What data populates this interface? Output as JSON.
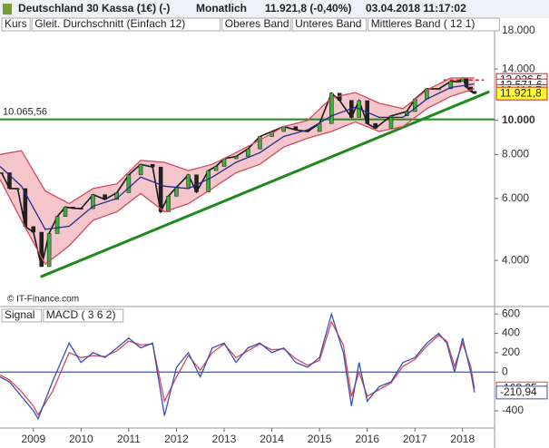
{
  "header": {
    "title": "Deutschland 30 Kassa (1€) (-)",
    "period": "Monatlich",
    "quote": "11.921,8 (-0,40%)",
    "timestamp": "03.04.2018 11:17:02",
    "copyright": "© IT-Finance.com"
  },
  "chart_data": [
    {
      "type": "line",
      "log_scale": true,
      "legend": [
        "Kurs",
        "Gleit. Durchschnitt (Einfach 12)",
        "Oberes Band",
        "Unteres Band",
        "Mittleres Band ( 12 1)"
      ],
      "xlim": [
        2008.3,
        2018.67
      ],
      "ylim": [
        3010,
        19300
      ],
      "yticks": [
        {
          "value": 4000,
          "label": "4.000"
        },
        {
          "value": 6000,
          "label": "6.000"
        },
        {
          "value": 8000,
          "label": "8.000"
        },
        {
          "value": 10000,
          "label": "10.000"
        },
        {
          "value": 14000,
          "label": "14.000"
        },
        {
          "value": 18000,
          "label": "18.000"
        }
      ],
      "series": [
        {
          "name": "Kurs",
          "color": "#1a1a1a",
          "x": [
            2008.33,
            2008.5,
            2008.67,
            2008.83,
            2009.0,
            2009.17,
            2009.33,
            2009.5,
            2009.67,
            2009.83,
            2010.0,
            2010.25,
            2010.5,
            2010.75,
            2011.0,
            2011.25,
            2011.5,
            2011.67,
            2011.83,
            2012.0,
            2012.25,
            2012.42,
            2012.67,
            2012.83,
            2013.0,
            2013.25,
            2013.5,
            2013.75,
            2014.0,
            2014.25,
            2014.5,
            2014.75,
            2015.0,
            2015.25,
            2015.42,
            2015.67,
            2015.83,
            2016.0,
            2016.17,
            2016.5,
            2016.83,
            2017.0,
            2017.25,
            2017.5,
            2017.75,
            2017.92,
            2018.0,
            2018.08,
            2018.17,
            2018.25
          ],
          "values": [
            7100,
            6400,
            6400,
            4990,
            4810,
            3840,
            4770,
            5330,
            5670,
            5625,
            5610,
            6150,
            5960,
            6230,
            7000,
            7500,
            7370,
            5500,
            6090,
            6460,
            7000,
            6260,
            7200,
            7400,
            7780,
            7900,
            8300,
            9000,
            9300,
            9600,
            9400,
            9300,
            9800,
            11950,
            11400,
            10200,
            11380,
            9800,
            9500,
            10300,
            10600,
            11500,
            12300,
            12300,
            12900,
            12900,
            13190,
            12440,
            12100,
            11922
          ]
        },
        {
          "name": "Oberes Band",
          "color": "#d44a5a",
          "x": [
            2008.3,
            2008.75,
            2009.25,
            2009.75,
            2010.25,
            2010.75,
            2011.25,
            2011.75,
            2012.25,
            2012.75,
            2013.25,
            2013.75,
            2014.25,
            2014.75,
            2015.25,
            2015.75,
            2016.25,
            2016.75,
            2017.25,
            2017.75,
            2018.25
          ],
          "values": [
            8000,
            8200,
            6300,
            5800,
            6400,
            6600,
            7700,
            7600,
            7200,
            7500,
            8100,
            8800,
            9600,
            10000,
            11600,
            12000,
            11200,
            10800,
            12200,
            13200,
            13200
          ]
        },
        {
          "name": "Unteres Band",
          "color": "#d44a5a",
          "x": [
            2008.3,
            2008.75,
            2009.25,
            2009.75,
            2010.25,
            2010.75,
            2011.25,
            2011.75,
            2012.25,
            2012.75,
            2013.25,
            2013.75,
            2014.25,
            2014.75,
            2015.25,
            2015.75,
            2016.25,
            2016.75,
            2017.25,
            2017.75,
            2018.25
          ],
          "values": [
            6800,
            5200,
            3900,
            4400,
            5200,
            5500,
            6200,
            5500,
            5800,
            6400,
            7100,
            7500,
            8400,
            8900,
            9300,
            9900,
            9300,
            9600,
            10800,
            11700,
            12300
          ]
        },
        {
          "name": "Mittleres Band ( 12 1)",
          "color": "#1f2d8a",
          "x": [
            2008.3,
            2008.75,
            2009.25,
            2009.75,
            2010.25,
            2010.75,
            2011.25,
            2011.75,
            2012.25,
            2012.75,
            2013.25,
            2013.75,
            2014.25,
            2014.75,
            2015.25,
            2015.75,
            2016.25,
            2016.75,
            2017.25,
            2017.75,
            2018.25
          ],
          "values": [
            7400,
            6500,
            4900,
            5000,
            5700,
            6000,
            6900,
            6500,
            6400,
            6900,
            7600,
            8100,
            9000,
            9400,
            10300,
            10900,
            10200,
            10200,
            11500,
            12400,
            12700
          ]
        }
      ],
      "hline": {
        "value": 10065.56,
        "label": "10.065,56",
        "color": "#1e8a1e"
      },
      "trendline": {
        "x": [
          2009.15,
          2018.56
        ],
        "values": [
          3590,
          12070
        ],
        "color": "#1e8a1e"
      },
      "dashed_level": {
        "value": 13026.5,
        "x": [
          2017.6,
          2018.45
        ],
        "color": "#cc2222"
      },
      "flags": [
        {
          "value": 13026.5,
          "label": "13.026,5"
        },
        {
          "value": 12571.6,
          "label": "12.571,6"
        },
        {
          "value": 12116.7,
          "label": "12.116,7"
        },
        {
          "value": 11921.8,
          "label": "11.921,8",
          "color": "#ffff33"
        }
      ]
    },
    {
      "type": "line",
      "legend": [
        "Signal",
        "MACD ( 3 6 2)"
      ],
      "xlim": [
        2008.3,
        2018.67
      ],
      "ylim": [
        -540,
        630
      ],
      "xticks": [
        2009,
        2010,
        2011,
        2012,
        2013,
        2014,
        2015,
        2016,
        2017,
        2018
      ],
      "yticks": [
        -400,
        0,
        200,
        400,
        600
      ],
      "zero_line": {
        "value": 0,
        "color": "#1f2d8a"
      },
      "series": [
        {
          "name": "Signal",
          "color": "#d44a5a",
          "x": [
            2008.3,
            2008.5,
            2008.75,
            2009.0,
            2009.1,
            2009.4,
            2009.75,
            2010.0,
            2010.25,
            2010.5,
            2010.75,
            2011.0,
            2011.25,
            2011.5,
            2011.75,
            2012.0,
            2012.25,
            2012.5,
            2012.75,
            2013.0,
            2013.25,
            2013.5,
            2013.75,
            2014.0,
            2014.25,
            2014.5,
            2014.75,
            2015.0,
            2015.25,
            2015.5,
            2015.67,
            2015.83,
            2016.0,
            2016.25,
            2016.5,
            2016.75,
            2017.0,
            2017.25,
            2017.5,
            2017.67,
            2017.83,
            2018.0,
            2018.17,
            2018.25
          ],
          "values": [
            -30,
            -80,
            -200,
            -350,
            -440,
            -200,
            200,
            150,
            170,
            160,
            220,
            320,
            280,
            290,
            -300,
            -50,
            170,
            20,
            200,
            290,
            150,
            220,
            290,
            230,
            240,
            140,
            70,
            120,
            520,
            280,
            -250,
            0,
            -250,
            -180,
            -110,
            60,
            130,
            270,
            380,
            320,
            60,
            300,
            60,
            -168.25
          ]
        },
        {
          "name": "MACD ( 3 6 2)",
          "color": "#3a4fb0",
          "x": [
            2008.3,
            2008.5,
            2008.75,
            2009.0,
            2009.1,
            2009.4,
            2009.75,
            2010.0,
            2010.25,
            2010.5,
            2010.75,
            2011.0,
            2011.25,
            2011.5,
            2011.75,
            2012.0,
            2012.25,
            2012.5,
            2012.75,
            2013.0,
            2013.25,
            2013.5,
            2013.75,
            2014.0,
            2014.25,
            2014.5,
            2014.75,
            2015.0,
            2015.25,
            2015.5,
            2015.67,
            2015.83,
            2016.0,
            2016.25,
            2016.5,
            2016.75,
            2017.0,
            2017.25,
            2017.5,
            2017.67,
            2017.83,
            2018.0,
            2018.17,
            2018.25
          ],
          "values": [
            -50,
            -100,
            -250,
            -400,
            -480,
            -100,
            300,
            100,
            200,
            150,
            250,
            350,
            250,
            300,
            -450,
            50,
            200,
            -50,
            250,
            300,
            100,
            250,
            300,
            200,
            250,
            100,
            50,
            150,
            600,
            200,
            -350,
            100,
            -300,
            -150,
            -100,
            100,
            150,
            300,
            400,
            300,
            0,
            350,
            0,
            -210.94
          ]
        }
      ],
      "flags": [
        {
          "value": -168.25,
          "label": "-168,25",
          "color": "#d44a5a"
        },
        {
          "value": -210.94,
          "label": "-210,94",
          "color": "#3a4fb0"
        }
      ]
    }
  ]
}
